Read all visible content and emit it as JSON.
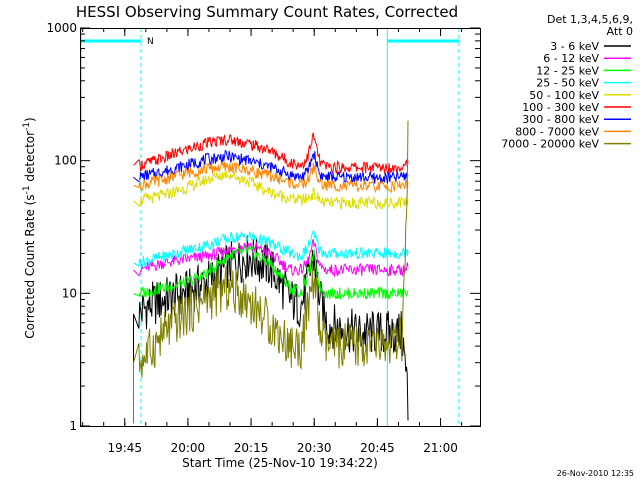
{
  "chart_data": {
    "type": "line",
    "title": "HESSI Observing Summary Count Rates, Corrected",
    "xlabel": "Start Time (25-Nov-10 19:34:22)",
    "ylabel": "Corrected Count Rate (s",
    "ylabel_sup1": "-1",
    "ylabel_mid": " detector",
    "ylabel_sup2": "-1",
    "ylabel_end": ")",
    "y_scale": "log",
    "ylim": [
      1,
      1000
    ],
    "xlim_minutes": [
      0,
      95
    ],
    "x_ticks": [
      {
        "label": "19:45",
        "minute": 10.63
      },
      {
        "label": "20:00",
        "minute": 25.63
      },
      {
        "label": "20:15",
        "minute": 40.63
      },
      {
        "label": "20:30",
        "minute": 55.63
      },
      {
        "label": "20:45",
        "minute": 70.63
      },
      {
        "label": "21:00",
        "minute": 85.63
      }
    ],
    "y_ticks": [
      {
        "label": "1",
        "value": 1
      },
      {
        "label": "10",
        "value": 10
      },
      {
        "label": "100",
        "value": 100
      },
      {
        "label": "1000",
        "value": 1000
      }
    ],
    "legend": {
      "header": [
        "Det 1,3,4,5,6,9,",
        "Att 0"
      ],
      "placement": "right, outside plot"
    },
    "series": [
      {
        "name": "3 - 6 keV",
        "color": "#000000",
        "x": [
          12.7,
          14,
          16,
          20,
          25,
          30,
          35,
          40,
          45,
          50,
          52.5,
          54,
          55.5,
          57,
          58.5,
          61,
          66,
          70,
          74,
          76.5,
          78.5
        ],
        "y": [
          1.05,
          7,
          8,
          9,
          10,
          12,
          16,
          19,
          16,
          9,
          8,
          12,
          19,
          9,
          6,
          5.5,
          5,
          5,
          5,
          5,
          1.1
        ]
      },
      {
        "name": "6 - 12 keV",
        "color": "#ff00ff",
        "x": [
          12.7,
          14,
          20,
          25,
          30,
          35,
          40,
          45,
          50,
          52.5,
          54,
          55.5,
          57,
          58.5,
          61,
          66,
          70,
          74,
          76.5,
          78.5
        ],
        "y": [
          15,
          15,
          17,
          18,
          19,
          21,
          23,
          20,
          15,
          15,
          17,
          24,
          16,
          15,
          15,
          15,
          15,
          15,
          15,
          16
        ]
      },
      {
        "name": "12 - 25 keV",
        "color": "#00ff00",
        "x": [
          12.7,
          14,
          20,
          25,
          30,
          35,
          40,
          45,
          50,
          52.5,
          54,
          55.5,
          57,
          58.5,
          61,
          66,
          70,
          74,
          76.5,
          78.5
        ],
        "y": [
          10,
          10,
          11,
          12,
          14,
          19,
          21,
          17,
          11,
          10,
          13,
          20,
          11,
          10,
          10,
          10,
          10,
          10,
          10,
          10.5
        ]
      },
      {
        "name": "25 - 50 keV",
        "color": "#00ffff",
        "x": [
          12.7,
          14,
          20,
          25,
          30,
          35,
          40,
          45,
          50,
          52.5,
          54,
          55.5,
          57,
          58.5,
          61,
          66,
          70,
          74,
          76.5,
          78.5
        ],
        "y": [
          17,
          17,
          19,
          21,
          23,
          26,
          27,
          24,
          20,
          19,
          22,
          28,
          21,
          20,
          20,
          20,
          20,
          20,
          20,
          21
        ]
      },
      {
        "name": "50 - 100 keV",
        "color": "#dddd00",
        "x": [
          12.7,
          14,
          20,
          25,
          30,
          35,
          40,
          45,
          50,
          52.5,
          54,
          55.5,
          57,
          58.5,
          61,
          66,
          70,
          74,
          76.5,
          78.5
        ],
        "y": [
          50,
          50,
          55,
          62,
          72,
          80,
          70,
          58,
          52,
          50,
          52,
          57,
          50,
          48,
          48,
          48,
          48,
          48,
          49,
          50
        ]
      },
      {
        "name": "100 - 300 keV",
        "color": "#ff0000",
        "x": [
          12.7,
          14,
          20,
          25,
          30,
          35,
          40,
          45,
          50,
          52.5,
          54,
          55.5,
          57,
          58.5,
          61,
          66,
          70,
          74,
          76.5,
          78.5
        ],
        "y": [
          92,
          92,
          105,
          120,
          135,
          145,
          135,
          120,
          97,
          92,
          105,
          155,
          97,
          90,
          89,
          89,
          89,
          88,
          92,
          100
        ]
      },
      {
        "name": "300 - 800 keV",
        "color": "#0000ff",
        "x": [
          12.7,
          14,
          20,
          25,
          30,
          35,
          40,
          45,
          50,
          52.5,
          54,
          55.5,
          57,
          58.5,
          61,
          66,
          70,
          74,
          76.5,
          78.5
        ],
        "y": [
          75,
          75,
          83,
          92,
          102,
          108,
          100,
          90,
          78,
          75,
          82,
          115,
          78,
          75,
          75,
          75,
          74,
          74,
          76,
          78
        ]
      },
      {
        "name": "800 - 7000 keV",
        "color": "#ff8800",
        "x": [
          12.7,
          14,
          20,
          25,
          30,
          35,
          40,
          45,
          50,
          52.5,
          54,
          55.5,
          57,
          58.5,
          61,
          66,
          70,
          74,
          76.5,
          78.5
        ],
        "y": [
          65,
          65,
          72,
          80,
          87,
          90,
          85,
          77,
          68,
          65,
          70,
          90,
          67,
          65,
          65,
          64,
          64,
          64,
          66,
          68
        ]
      },
      {
        "name": "7000 - 20000 keV",
        "color": "#808000",
        "x": [
          12.7,
          14,
          16,
          20,
          25,
          30,
          35,
          40,
          45,
          50,
          52.5,
          54,
          55.5,
          57,
          58.5,
          61,
          66,
          70,
          74,
          76.5,
          78.5
        ],
        "y": [
          1.05,
          3,
          3.5,
          5,
          7,
          9,
          11,
          9,
          6,
          4,
          4,
          7,
          14,
          5,
          4,
          4,
          4,
          4,
          4,
          4.5,
          200
        ]
      }
    ],
    "annotations": [
      {
        "text": "N",
        "kind": "night-bar",
        "start_minute": -1,
        "end_minute": 14.5
      },
      {
        "kind": "night-bar",
        "start_minute": 73,
        "end_minute": 90
      }
    ],
    "footer": "26-Nov-2010 12:35"
  }
}
